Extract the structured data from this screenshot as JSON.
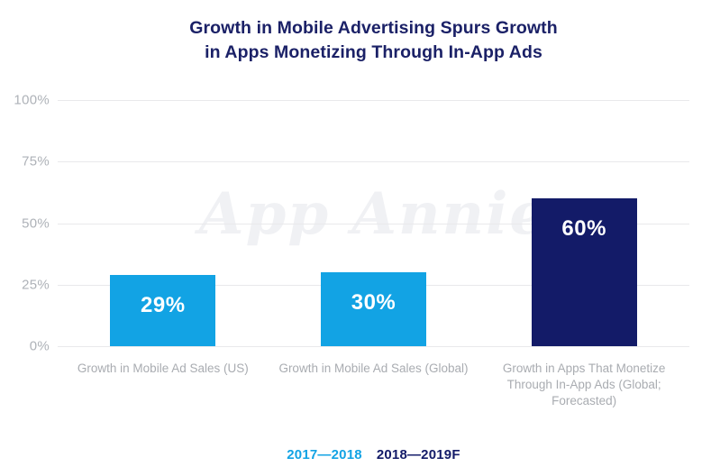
{
  "title": {
    "line1": "Growth in Mobile Advertising Spurs Growth",
    "line2": "in Apps Monetizing Through In-App Ads"
  },
  "watermark_text": "App Annie",
  "colors": {
    "light_blue": "#12a3e4",
    "navy": "#131b68",
    "title_navy": "#1b2167",
    "grid": "#e9e9eb",
    "axis_text": "#aeb2b8",
    "category_text": "#a9acb1",
    "watermark": "#f0f1f4",
    "bar_value_text": "#ffffff"
  },
  "chart_data": {
    "type": "bar",
    "title": "Growth in Mobile Advertising Spurs Growth in Apps Monetizing Through In-App Ads",
    "categories": [
      "Growth in Mobile Ad Sales (US)",
      "Growth in Mobile Ad Sales (Global)",
      "Growth in Apps That Monetize Through In-App Ads (Global; Forecasted)"
    ],
    "values": [
      29,
      30,
      60
    ],
    "value_labels": [
      "29%",
      "30%",
      "60%"
    ],
    "bar_series": [
      "2017—2018",
      "2017—2018",
      "2018—2019F"
    ],
    "bar_colors": [
      "#12a3e4",
      "#12a3e4",
      "#131b68"
    ],
    "xlabel": "",
    "ylabel": "",
    "ylim": [
      0,
      100
    ],
    "yticks": [
      100,
      75,
      50,
      25,
      0
    ],
    "ytick_labels": [
      "100%",
      "75%",
      "50%",
      "25%",
      "0%"
    ],
    "grid": true,
    "legend_position": "bottom",
    "watermark": "App Annie"
  },
  "legend": {
    "items": [
      {
        "label": "2017—2018",
        "color": "#12a3e4"
      },
      {
        "label": "2018—2019F",
        "color": "#131b68"
      }
    ]
  }
}
